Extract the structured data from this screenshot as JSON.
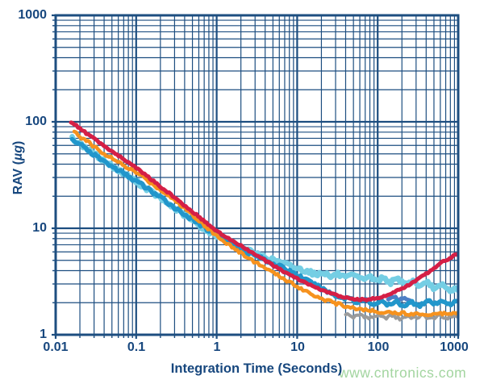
{
  "watermark": {
    "text": "www.cntronics.com",
    "color": "#a3d5a0"
  },
  "chart_data": {
    "type": "line",
    "title": "",
    "xlabel": "Integration Time (Seconds)",
    "ylabel_prefix": "RAV (",
    "ylabel_unit": "µg",
    "ylabel_suffix": ")",
    "x_scale": "log",
    "y_scale": "log",
    "xlim": [
      0.01,
      1000
    ],
    "ylim": [
      1,
      1000
    ],
    "grid": "log major and minor gridlines on, outward minor ticks on bottom and left axes",
    "legend": "none",
    "x_ticks": [
      "0.01",
      "0.1",
      "1",
      "10",
      "100",
      "1000"
    ],
    "y_ticks": [
      "1000",
      "100",
      "10",
      "1"
    ],
    "axis_color": "#1d4e80",
    "label_color": "#17477e",
    "series": [
      {
        "name": "gray-trace",
        "color": "#9b9b9b",
        "width": 4,
        "noise": 0.035,
        "points": [
          [
            40,
            1.58
          ],
          [
            50,
            1.46
          ],
          [
            62,
            1.55
          ],
          [
            78,
            1.42
          ],
          [
            97,
            1.52
          ],
          [
            121,
            1.43
          ],
          [
            151,
            1.52
          ],
          [
            188,
            1.41
          ],
          [
            234,
            1.5
          ],
          [
            292,
            1.43
          ],
          [
            364,
            1.52
          ],
          [
            454,
            1.41
          ],
          [
            566,
            1.5
          ],
          [
            705,
            1.43
          ],
          [
            878,
            1.51
          ],
          [
            1000,
            1.46
          ]
        ]
      },
      {
        "name": "medium-blue-trace",
        "color": "#4d7ec6",
        "width": 5,
        "noise": 0.025,
        "points": [
          [
            135,
            2.18
          ],
          [
            158,
            2.28
          ],
          [
            185,
            2.12
          ],
          [
            216,
            2.24
          ],
          [
            252,
            2.1
          ]
        ]
      },
      {
        "name": "light-blue-trace",
        "color": "#74cee4",
        "width": 6.5,
        "noise": 0.045,
        "points": [
          [
            0.016,
            70
          ],
          [
            0.019,
            64
          ],
          [
            0.023,
            58
          ],
          [
            0.028,
            52
          ],
          [
            0.034,
            47
          ],
          [
            0.041,
            42.5
          ],
          [
            0.05,
            38.5
          ],
          [
            0.061,
            35
          ],
          [
            0.075,
            31.8
          ],
          [
            0.09,
            29
          ],
          [
            0.11,
            26.2
          ],
          [
            0.135,
            23.6
          ],
          [
            0.165,
            21.2
          ],
          [
            0.2,
            19.1
          ],
          [
            0.245,
            17.2
          ],
          [
            0.3,
            15.4
          ],
          [
            0.37,
            13.8
          ],
          [
            0.45,
            12.4
          ],
          [
            0.55,
            11.2
          ],
          [
            0.67,
            10.1
          ],
          [
            0.82,
            9.2
          ],
          [
            1,
            8.6
          ],
          [
            1.25,
            7.9
          ],
          [
            1.55,
            7.3
          ],
          [
            1.9,
            6.75
          ],
          [
            2.35,
            6.25
          ],
          [
            2.9,
            5.85
          ],
          [
            3.6,
            5.5
          ],
          [
            4.4,
            5.2
          ],
          [
            5.4,
            4.95
          ],
          [
            6.7,
            4.7
          ],
          [
            8.2,
            4.45
          ],
          [
            10,
            4.2
          ],
          [
            12,
            4.05
          ],
          [
            14,
            3.95
          ],
          [
            17,
            3.65
          ],
          [
            21,
            3.9
          ],
          [
            26,
            3.5
          ],
          [
            32,
            3.72
          ],
          [
            40,
            3.4
          ],
          [
            50,
            3.62
          ],
          [
            62,
            3.3
          ],
          [
            78,
            3.55
          ],
          [
            95,
            3.2
          ],
          [
            118,
            3.45
          ],
          [
            145,
            3.1
          ],
          [
            180,
            3.33
          ],
          [
            222,
            3
          ],
          [
            275,
            3.2
          ],
          [
            340,
            2.85
          ],
          [
            420,
            3.05
          ],
          [
            520,
            2.7
          ],
          [
            640,
            2.9
          ],
          [
            790,
            2.55
          ],
          [
            900,
            2.75
          ],
          [
            1000,
            2.6
          ]
        ]
      },
      {
        "name": "blue-trace",
        "color": "#2196cb",
        "width": 5.5,
        "noise": 0.04,
        "points": [
          [
            0.016,
            69
          ],
          [
            0.02,
            61
          ],
          [
            0.025,
            54
          ],
          [
            0.031,
            48
          ],
          [
            0.039,
            43
          ],
          [
            0.049,
            38.5
          ],
          [
            0.061,
            34.8
          ],
          [
            0.076,
            31.5
          ],
          [
            0.095,
            28.4
          ],
          [
            0.12,
            25.4
          ],
          [
            0.15,
            22.6
          ],
          [
            0.19,
            20
          ],
          [
            0.24,
            17.7
          ],
          [
            0.3,
            15.7
          ],
          [
            0.38,
            13.9
          ],
          [
            0.48,
            12.3
          ],
          [
            0.6,
            11
          ],
          [
            0.76,
            9.8
          ],
          [
            1,
            9
          ],
          [
            1.3,
            7.9
          ],
          [
            1.6,
            7.1
          ],
          [
            2,
            6.5
          ],
          [
            2.5,
            5.9
          ],
          [
            3.1,
            5.5
          ],
          [
            3.9,
            5.1
          ],
          [
            4.8,
            4.75
          ],
          [
            6,
            4.4
          ],
          [
            7.4,
            4.1
          ],
          [
            9,
            3.8
          ],
          [
            11,
            3.5
          ],
          [
            13.5,
            3.2
          ],
          [
            16.5,
            2.95
          ],
          [
            20,
            2.72
          ],
          [
            25,
            2.5
          ],
          [
            30,
            2.35
          ],
          [
            37,
            2.2
          ],
          [
            45,
            2.24
          ],
          [
            56,
            2.02
          ],
          [
            70,
            2.13
          ],
          [
            88,
            1.93
          ],
          [
            110,
            2.06
          ],
          [
            138,
            1.89
          ],
          [
            172,
            2.02
          ],
          [
            215,
            1.88
          ],
          [
            268,
            2.02
          ],
          [
            335,
            1.9
          ],
          [
            418,
            2.07
          ],
          [
            520,
            1.93
          ],
          [
            650,
            2.07
          ],
          [
            810,
            1.95
          ],
          [
            1000,
            2.05
          ]
        ]
      },
      {
        "name": "orange-trace",
        "color": "#f6921e",
        "width": 4.5,
        "noise": 0.032,
        "points": [
          [
            0.017,
            80
          ],
          [
            0.02,
            73
          ],
          [
            0.024,
            66
          ],
          [
            0.029,
            60
          ],
          [
            0.035,
            54
          ],
          [
            0.042,
            49
          ],
          [
            0.051,
            45
          ],
          [
            0.062,
            41
          ],
          [
            0.075,
            37.5
          ],
          [
            0.09,
            35
          ],
          [
            0.11,
            32
          ],
          [
            0.135,
            28.5
          ],
          [
            0.165,
            25.5
          ],
          [
            0.2,
            23
          ],
          [
            0.245,
            20.8
          ],
          [
            0.3,
            18.4
          ],
          [
            0.37,
            16.2
          ],
          [
            0.45,
            14.3
          ],
          [
            0.55,
            12.6
          ],
          [
            0.67,
            11.1
          ],
          [
            0.82,
            9.7
          ],
          [
            1,
            8.5
          ],
          [
            1.25,
            7.5
          ],
          [
            1.55,
            6.7
          ],
          [
            1.9,
            6
          ],
          [
            2.35,
            5.4
          ],
          [
            2.9,
            4.9
          ],
          [
            3.6,
            4.45
          ],
          [
            4.4,
            4.05
          ],
          [
            5.4,
            3.7
          ],
          [
            6.7,
            3.4
          ],
          [
            8.2,
            3.1
          ],
          [
            10,
            2.85
          ],
          [
            12.5,
            2.6
          ],
          [
            15.5,
            2.4
          ],
          [
            19,
            2.23
          ],
          [
            23.5,
            2.1
          ],
          [
            29,
            1.98
          ],
          [
            36,
            1.9
          ],
          [
            44,
            1.83
          ],
          [
            54,
            1.77
          ],
          [
            67,
            1.72
          ],
          [
            82,
            1.68
          ],
          [
            100,
            1.66
          ],
          [
            125,
            1.63
          ],
          [
            155,
            1.61
          ],
          [
            190,
            1.6
          ],
          [
            235,
            1.58
          ],
          [
            290,
            1.57
          ],
          [
            360,
            1.56
          ],
          [
            440,
            1.56
          ],
          [
            545,
            1.57
          ],
          [
            670,
            1.59
          ],
          [
            825,
            1.61
          ],
          [
            1000,
            1.63
          ]
        ]
      },
      {
        "name": "crimson-trace",
        "color": "#d51f46",
        "width": 5,
        "noise": 0.018,
        "points": [
          [
            0.0155,
            100
          ],
          [
            0.018,
            92
          ],
          [
            0.02,
            87
          ],
          [
            0.024,
            78
          ],
          [
            0.028,
            72
          ],
          [
            0.033,
            66
          ],
          [
            0.04,
            59
          ],
          [
            0.048,
            54
          ],
          [
            0.058,
            49
          ],
          [
            0.07,
            44.5
          ],
          [
            0.085,
            40.5
          ],
          [
            0.1,
            37
          ],
          [
            0.12,
            33.5
          ],
          [
            0.15,
            29.1
          ],
          [
            0.18,
            26.4
          ],
          [
            0.22,
            23.2
          ],
          [
            0.27,
            20.8
          ],
          [
            0.32,
            18.6
          ],
          [
            0.39,
            16.6
          ],
          [
            0.46,
            15
          ],
          [
            0.56,
            13.4
          ],
          [
            0.68,
            11.9
          ],
          [
            0.82,
            10.6
          ],
          [
            1,
            9.4
          ],
          [
            1.2,
            8.6
          ],
          [
            1.4,
            8.05
          ],
          [
            1.7,
            7.3
          ],
          [
            2,
            6.85
          ],
          [
            2.4,
            6.3
          ],
          [
            2.8,
            5.87
          ],
          [
            3.3,
            5.4
          ],
          [
            3.9,
            5.03
          ],
          [
            4.6,
            4.68
          ],
          [
            5.5,
            4.3
          ],
          [
            6.5,
            4
          ],
          [
            7.8,
            3.72
          ],
          [
            9.2,
            3.47
          ],
          [
            11,
            3.25
          ],
          [
            13,
            3.05
          ],
          [
            15.5,
            2.87
          ],
          [
            18,
            2.72
          ],
          [
            21,
            2.6
          ],
          [
            25,
            2.48
          ],
          [
            30,
            2.37
          ],
          [
            36,
            2.27
          ],
          [
            43,
            2.2
          ],
          [
            51,
            2.16
          ],
          [
            61,
            2.14
          ],
          [
            73,
            2.15
          ],
          [
            87,
            2.18
          ],
          [
            104,
            2.24
          ],
          [
            125,
            2.33
          ],
          [
            149,
            2.45
          ],
          [
            178,
            2.6
          ],
          [
            213,
            2.78
          ],
          [
            255,
            3
          ],
          [
            305,
            3.26
          ],
          [
            365,
            3.57
          ],
          [
            437,
            3.93
          ],
          [
            522,
            4.33
          ],
          [
            625,
            4.78
          ],
          [
            747,
            5.15
          ],
          [
            870,
            5.5
          ],
          [
            1000,
            5.8
          ]
        ]
      }
    ]
  }
}
